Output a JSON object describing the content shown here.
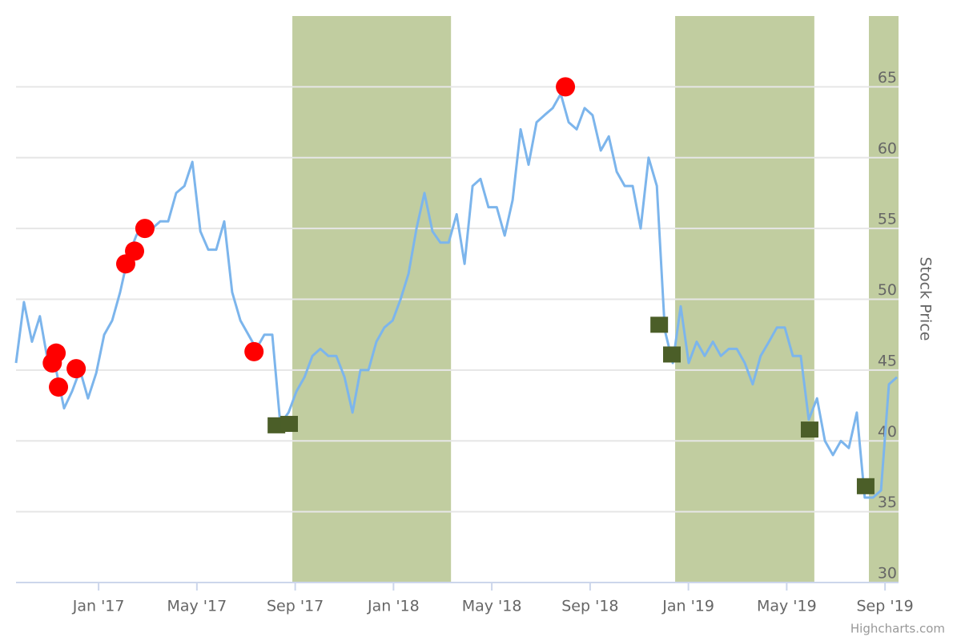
{
  "chart_data": {
    "type": "line",
    "y_axis_title": "Stock Price",
    "credits": "Highcharts.com",
    "xlim": [
      2016.72,
      2019.7125
    ],
    "ylim": [
      30,
      70
    ],
    "yticks": [
      30,
      35,
      40,
      45,
      50,
      55,
      60,
      65
    ],
    "xticks": [
      {
        "value": 2017,
        "label": "Jan '17"
      },
      {
        "value": 2017.3333,
        "label": "May '17"
      },
      {
        "value": 2017.6667,
        "label": "Sep '17"
      },
      {
        "value": 2018,
        "label": "Jan '18"
      },
      {
        "value": 2018.3333,
        "label": "May '18"
      },
      {
        "value": 2018.6667,
        "label": "Sep '18"
      },
      {
        "value": 2019,
        "label": "Jan '19"
      },
      {
        "value": 2019.3333,
        "label": "May '19"
      },
      {
        "value": 2019.6667,
        "label": "Sep '19"
      }
    ],
    "grid": true,
    "plot_bands": [
      {
        "from": 2017.657,
        "to": 2018.195,
        "color": "#c1cda0"
      },
      {
        "from": 2018.955,
        "to": 2019.427,
        "color": "#c1cda0"
      },
      {
        "from": 2019.612,
        "to": 2019.7125,
        "color": "#c1cda0"
      }
    ],
    "series": [
      {
        "marker": "none",
        "color": "#7cb5ec",
        "x": [
          2016.72,
          2016.747,
          2016.774,
          2016.801,
          2016.829,
          2016.856,
          2016.883,
          2016.91,
          2016.937,
          2016.964,
          2016.992,
          2017.019,
          2017.046,
          2017.073,
          2017.1,
          2017.128,
          2017.155,
          2017.182,
          2017.209,
          2017.236,
          2017.263,
          2017.291,
          2017.318,
          2017.345,
          2017.372,
          2017.399,
          2017.426,
          2017.453,
          2017.481,
          2017.508,
          2017.535,
          2017.562,
          2017.589,
          2017.616,
          2017.644,
          2017.671,
          2017.698,
          2017.725,
          2017.752,
          2017.779,
          2017.806,
          2017.834,
          2017.861,
          2017.888,
          2017.915,
          2017.942,
          2017.969,
          2017.997,
          2018.024,
          2018.051,
          2018.078,
          2018.105,
          2018.132,
          2018.159,
          2018.187,
          2018.214,
          2018.241,
          2018.268,
          2018.295,
          2018.322,
          2018.35,
          2018.377,
          2018.404,
          2018.431,
          2018.458,
          2018.485,
          2018.512,
          2018.54,
          2018.567,
          2018.594,
          2018.621,
          2018.648,
          2018.675,
          2018.703,
          2018.73,
          2018.757,
          2018.784,
          2018.811,
          2018.838,
          2018.865,
          2018.893,
          2018.92,
          2018.947,
          2018.974,
          2019.001,
          2019.028,
          2019.055,
          2019.083,
          2019.11,
          2019.137,
          2019.164,
          2019.191,
          2019.218,
          2019.245,
          2019.273,
          2019.3,
          2019.327,
          2019.354,
          2019.381,
          2019.408,
          2019.436,
          2019.463,
          2019.49,
          2019.517,
          2019.544,
          2019.571,
          2019.598,
          2019.626,
          2019.653,
          2019.68,
          2019.707
        ],
        "values": [
          45.5,
          49.8,
          47,
          48.8,
          45.5,
          45,
          42.3,
          43.5,
          45,
          43,
          44.8,
          47.5,
          48.5,
          50.5,
          53,
          54.5,
          55.5,
          55,
          55.5,
          55.5,
          57.5,
          58,
          59.7,
          54.8,
          53.5,
          53.5,
          55.5,
          50.5,
          48.5,
          47.5,
          46.5,
          47.5,
          47.5,
          41.2,
          42,
          43.5,
          44.5,
          46,
          46.5,
          46,
          46,
          44.5,
          42,
          45,
          45,
          47,
          48,
          48.5,
          50,
          51.8,
          55,
          57.5,
          54.8,
          54,
          54,
          56,
          52.5,
          58,
          58.5,
          56.5,
          56.5,
          54.5,
          57,
          62,
          59.5,
          62.5,
          63,
          63.5,
          64.5,
          62.5,
          62,
          63.5,
          63,
          60.5,
          61.5,
          59,
          58,
          58,
          55,
          60,
          58,
          47.8,
          45.5,
          49.5,
          45.5,
          47,
          46,
          47,
          46,
          46.5,
          46.5,
          45.5,
          44,
          46,
          47,
          48,
          48,
          46,
          46,
          41.5,
          43,
          40,
          39,
          40,
          39.5,
          42,
          36,
          36,
          36.5,
          44,
          44.5
        ]
      },
      {
        "marker": "circle",
        "color": "#ff0000",
        "x": [
          2016.843,
          2016.856,
          2016.864,
          2016.924,
          2017.092,
          2017.122,
          2017.157,
          2017.527,
          2018.583
        ],
        "values": [
          45.5,
          46.2,
          43.8,
          45.1,
          52.5,
          53.4,
          55,
          46.3,
          65
        ]
      },
      {
        "marker": "square",
        "color": "#4b5e28",
        "x": [
          2017.603,
          2017.646,
          2018.901,
          2018.944,
          2019.411,
          2019.601
        ],
        "values": [
          41.1,
          41.2,
          48.2,
          46.1,
          40.8,
          36.8
        ]
      }
    ]
  }
}
